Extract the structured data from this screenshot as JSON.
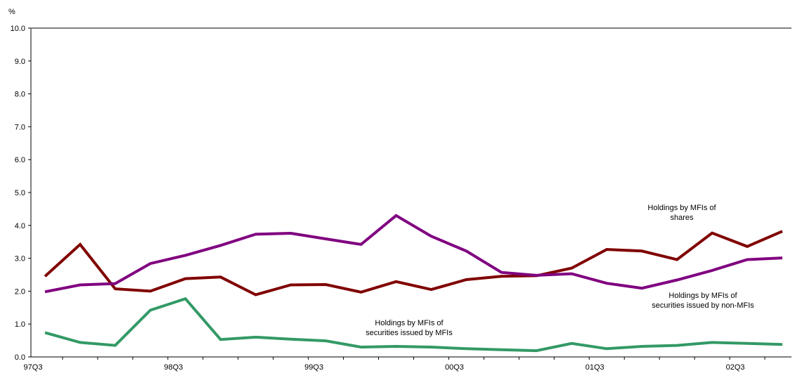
{
  "chart_data": {
    "type": "line",
    "ylabel": "%",
    "ylim": [
      0,
      10
    ],
    "y_ticks": [
      "0.0",
      "1.0",
      "2.0",
      "3.0",
      "4.0",
      "5.0",
      "6.0",
      "7.0",
      "8.0",
      "9.0",
      "10.0"
    ],
    "x": [
      "97Q3",
      "97Q4",
      "98Q1",
      "98Q2",
      "98Q3",
      "98Q4",
      "99Q1",
      "99Q2",
      "99Q3",
      "99Q4",
      "00Q1",
      "00Q2",
      "00Q3",
      "00Q4",
      "01Q1",
      "01Q2",
      "01Q3",
      "01Q4",
      "02Q1",
      "02Q2",
      "02Q3",
      "02Q4"
    ],
    "x_tick_labels": [
      "97Q3",
      "98Q3",
      "99Q3",
      "00Q3",
      "01Q3",
      "02Q3"
    ],
    "series": [
      {
        "name": "Holdings by MFIs of shares",
        "name_lines": [
          "Holdings by MFIs of",
          "shares"
        ],
        "color": "#800000",
        "values": [
          2.45,
          3.42,
          2.07,
          2.0,
          2.38,
          2.43,
          1.89,
          2.19,
          2.2,
          1.97,
          2.29,
          2.05,
          2.35,
          2.45,
          2.47,
          2.7,
          3.27,
          3.22,
          2.96,
          3.77,
          3.36,
          3.82
        ]
      },
      {
        "name": "Holdings by MFIs of securities issued by non-MFIs",
        "name_lines": [
          "Holdings by MFIs of",
          "securities issued by non-MFIs"
        ],
        "color": "#800080",
        "values": [
          1.98,
          2.19,
          2.23,
          2.84,
          3.09,
          3.39,
          3.73,
          3.76,
          3.59,
          3.42,
          4.3,
          3.67,
          3.22,
          2.57,
          2.48,
          2.53,
          2.24,
          2.09,
          2.34,
          2.63,
          2.96,
          3.01
        ]
      },
      {
        "name": "Holdings by MFIs of securities issued by MFIs",
        "name_lines": [
          "Holdings by MFIs of",
          "securities issued by MFIs"
        ],
        "color": "#339966",
        "values": [
          0.74,
          0.44,
          0.35,
          1.42,
          1.77,
          0.53,
          0.6,
          0.54,
          0.49,
          0.3,
          0.32,
          0.3,
          0.25,
          0.22,
          0.19,
          0.41,
          0.25,
          0.32,
          0.35,
          0.44,
          0.41,
          0.38
        ]
      }
    ]
  }
}
